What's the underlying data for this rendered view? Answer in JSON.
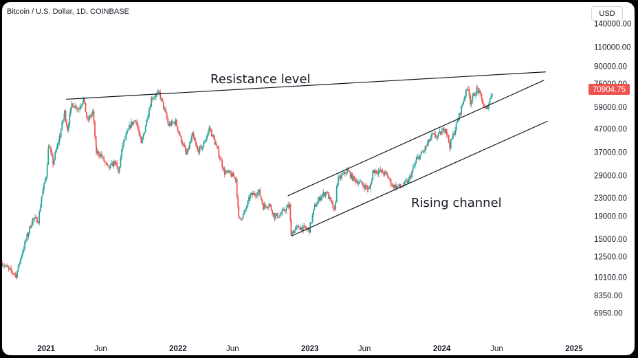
{
  "header": {
    "symbol": "Bitcoin / U.S. Dollar, 1D, COINBASE",
    "currency": "USD"
  },
  "colors": {
    "up": "#26a69a",
    "down": "#ef5350",
    "last_price_bg": "#ef5350",
    "line": "#131722"
  },
  "chart_data": {
    "type": "candlestick",
    "title": "Bitcoin / U.S. Dollar, 1D, COINBASE",
    "yscale": "log",
    "ylim": [
      5600,
      150000
    ],
    "y_ticks": [
      "140000.00",
      "110000.00",
      "90000.00",
      "75000.00",
      "59000.00",
      "47000.00",
      "37000.00",
      "29000.00",
      "23000.00",
      "19000.00",
      "15000.00",
      "12500.00",
      "10100.00",
      "8350.00",
      "6950.00"
    ],
    "x_range": [
      "2020-09-01",
      "2025-01-20"
    ],
    "x_ticks": [
      {
        "label": "2021",
        "date": "2021-01-01",
        "bold": true
      },
      {
        "label": "Jun",
        "date": "2021-06-01",
        "bold": false
      },
      {
        "label": "2022",
        "date": "2022-01-01",
        "bold": true
      },
      {
        "label": "Jun",
        "date": "2022-06-01",
        "bold": false
      },
      {
        "label": "2023",
        "date": "2023-01-01",
        "bold": true
      },
      {
        "label": "Jun",
        "date": "2023-06-01",
        "bold": false
      },
      {
        "label": "2024",
        "date": "2024-01-01",
        "bold": true
      },
      {
        "label": "Jun",
        "date": "2024-06-01",
        "bold": false
      },
      {
        "label": "2025",
        "date": "2025-01-01",
        "bold": true
      }
    ],
    "last_price": 70904.75,
    "last_price_label": "70904.75",
    "series": [
      [
        "2020-09-01",
        11700
      ],
      [
        "2020-09-20",
        10900
      ],
      [
        "2020-10-10",
        10300
      ],
      [
        "2020-10-25",
        12800
      ],
      [
        "2020-11-10",
        15600
      ],
      [
        "2020-11-25",
        18500
      ],
      [
        "2020-12-10",
        18200
      ],
      [
        "2020-12-20",
        23500
      ],
      [
        "2021-01-01",
        29000
      ],
      [
        "2021-01-08",
        40000
      ],
      [
        "2021-01-20",
        33000
      ],
      [
        "2021-02-08",
        44000
      ],
      [
        "2021-02-21",
        56000
      ],
      [
        "2021-03-01",
        47000
      ],
      [
        "2021-03-13",
        61000
      ],
      [
        "2021-04-01",
        58000
      ],
      [
        "2021-04-14",
        64000
      ],
      [
        "2021-04-25",
        51000
      ],
      [
        "2021-05-10",
        56000
      ],
      [
        "2021-05-20",
        37000
      ],
      [
        "2021-06-01",
        36000
      ],
      [
        "2021-06-22",
        31000
      ],
      [
        "2021-07-10",
        33500
      ],
      [
        "2021-07-20",
        29900
      ],
      [
        "2021-08-01",
        40000
      ],
      [
        "2021-08-22",
        49000
      ],
      [
        "2021-09-06",
        52000
      ],
      [
        "2021-09-21",
        40000
      ],
      [
        "2021-10-10",
        55000
      ],
      [
        "2021-10-20",
        65000
      ],
      [
        "2021-11-10",
        68000
      ],
      [
        "2021-11-25",
        57000
      ],
      [
        "2021-12-05",
        49000
      ],
      [
        "2021-12-25",
        50500
      ],
      [
        "2022-01-10",
        42000
      ],
      [
        "2022-01-24",
        36000
      ],
      [
        "2022-02-10",
        44000
      ],
      [
        "2022-02-24",
        37500
      ],
      [
        "2022-03-10",
        39000
      ],
      [
        "2022-03-29",
        47500
      ],
      [
        "2022-04-15",
        40000
      ],
      [
        "2022-05-10",
        30000
      ],
      [
        "2022-05-25",
        29500
      ],
      [
        "2022-06-10",
        28000
      ],
      [
        "2022-06-18",
        18500
      ],
      [
        "2022-07-01",
        19200
      ],
      [
        "2022-07-20",
        23500
      ],
      [
        "2022-08-13",
        24500
      ],
      [
        "2022-08-25",
        21000
      ],
      [
        "2022-09-10",
        21500
      ],
      [
        "2022-09-25",
        19000
      ],
      [
        "2022-10-10",
        19200
      ],
      [
        "2022-10-25",
        20500
      ],
      [
        "2022-11-05",
        21200
      ],
      [
        "2022-11-10",
        16000
      ],
      [
        "2022-12-01",
        17000
      ],
      [
        "2022-12-30",
        16500
      ],
      [
        "2023-01-14",
        21000
      ],
      [
        "2023-02-01",
        23500
      ],
      [
        "2023-02-16",
        24500
      ],
      [
        "2023-03-10",
        20000
      ],
      [
        "2023-03-18",
        27500
      ],
      [
        "2023-04-14",
        30500
      ],
      [
        "2023-05-01",
        28000
      ],
      [
        "2023-05-25",
        26500
      ],
      [
        "2023-06-15",
        25000
      ],
      [
        "2023-06-25",
        30500
      ],
      [
        "2023-07-15",
        30200
      ],
      [
        "2023-08-01",
        29300
      ],
      [
        "2023-08-18",
        26000
      ],
      [
        "2023-09-10",
        25800
      ],
      [
        "2023-10-01",
        27500
      ],
      [
        "2023-10-24",
        34500
      ],
      [
        "2023-11-10",
        37000
      ],
      [
        "2023-12-05",
        44000
      ],
      [
        "2023-12-20",
        43500
      ],
      [
        "2024-01-11",
        47500
      ],
      [
        "2024-01-23",
        39500
      ],
      [
        "2024-02-15",
        52000
      ],
      [
        "2024-03-05",
        67000
      ],
      [
        "2024-03-14",
        73000
      ],
      [
        "2024-03-20",
        62000
      ],
      [
        "2024-04-08",
        71500
      ],
      [
        "2024-04-20",
        64000
      ],
      [
        "2024-05-01",
        57000
      ],
      [
        "2024-05-10",
        61000
      ],
      [
        "2024-05-20",
        70904.75
      ]
    ],
    "annotations": [
      {
        "text": "Resistance level",
        "line": [
          [
            "2021-02-25",
            64000
          ],
          [
            "2024-10-15",
            85000
          ]
        ]
      },
      {
        "text": "Rising channel",
        "line": [
          [
            "2022-11-12",
            15500
          ],
          [
            "2024-10-20",
            51000
          ]
        ]
      },
      {
        "text": "",
        "line": [
          [
            "2022-11-01",
            23500
          ],
          [
            "2024-10-10",
            78000
          ]
        ]
      }
    ]
  }
}
